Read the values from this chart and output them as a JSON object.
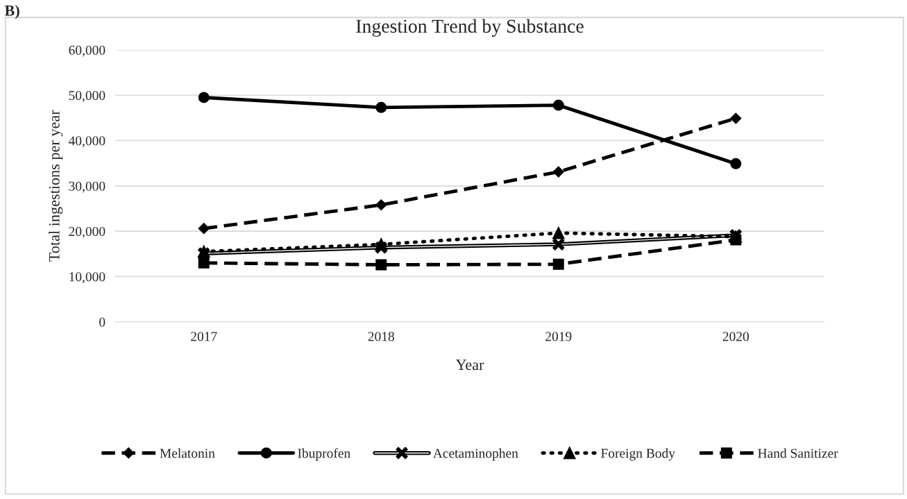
{
  "chart_data": {
    "type": "line",
    "title": "Ingestion Trend by Substance",
    "xlabel": "Year",
    "ylabel": "Total ingestions per year",
    "categories": [
      "2017",
      "2018",
      "2019",
      "2020"
    ],
    "series": [
      {
        "name": "Melatonin",
        "color": "#000000",
        "values": [
          20600,
          25800,
          33100,
          44900
        ],
        "marker": "diamond",
        "line_style": "dashed"
      },
      {
        "name": "Ibuprofen",
        "color": "#000000",
        "values": [
          49500,
          47300,
          47800,
          34900
        ],
        "marker": "circle",
        "line_style": "solid"
      },
      {
        "name": "Acetaminophen",
        "color": "#000000",
        "values": [
          15100,
          16400,
          17100,
          19100
        ],
        "marker": "cross",
        "line_style": "solid"
      },
      {
        "name": "Foreign Body",
        "color": "#000000",
        "values": [
          15500,
          17100,
          19600,
          18800
        ],
        "marker": "triangle",
        "line_style": "dotted"
      },
      {
        "name": "Hand Sanitizer",
        "color": "#000000",
        "values": [
          13000,
          12600,
          12700,
          18100
        ],
        "marker": "square",
        "line_style": "dashed"
      }
    ],
    "ylim": [
      0,
      60000
    ],
    "yticks": [
      {
        "value": 0,
        "label": "0"
      },
      {
        "value": 10000,
        "label": "10,000"
      },
      {
        "value": 20000,
        "label": "20,000"
      },
      {
        "value": 30000,
        "label": "30,000"
      },
      {
        "value": 40000,
        "label": "40,000"
      },
      {
        "value": 50000,
        "label": "50,000"
      },
      {
        "value": 60000,
        "label": "60,000"
      }
    ],
    "grid": "y",
    "legend": "bottom",
    "annotations": [
      "B)"
    ]
  }
}
